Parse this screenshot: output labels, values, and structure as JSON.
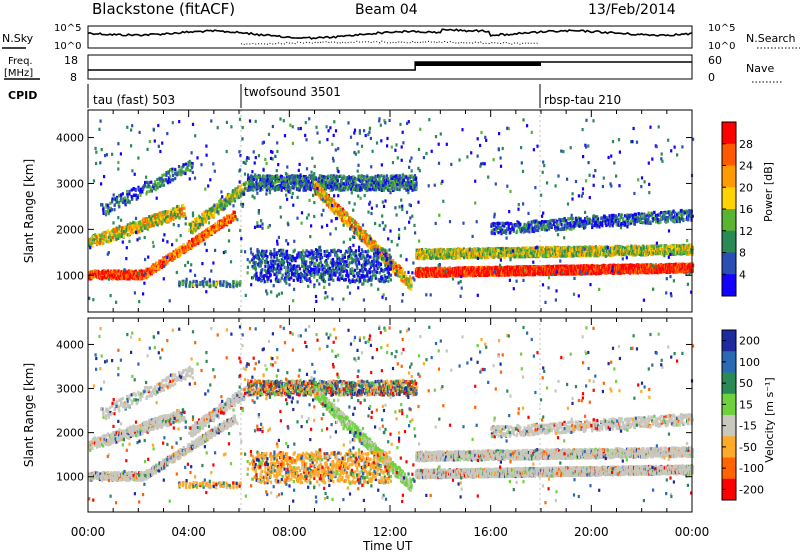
{
  "header": {
    "station": "Blackstone (fitACF)",
    "beam": "Beam 04",
    "date": "13/Feb/2014"
  },
  "nsky_panel": {
    "left_label": "N.Sky",
    "right_label": "N.Search",
    "left_ticks": [
      "10^5",
      "10^0"
    ],
    "right_ticks": [
      "10^5",
      "10^0"
    ]
  },
  "freq_panel": {
    "left_label_line1": "Freq.",
    "left_label_line2": "[MHz]",
    "right_label": "Nave",
    "left_ticks": [
      "18",
      "8"
    ],
    "right_ticks": [
      "60",
      "0"
    ]
  },
  "cpid_panel": {
    "label": "CPID",
    "modes": [
      {
        "name": "tau (fast) 503",
        "start_hour": 0
      },
      {
        "name": "twofsound 3501",
        "start_hour": 6
      },
      {
        "name": "rbsp-tau 210",
        "start_hour": 18
      }
    ]
  },
  "chart_data": [
    {
      "type": "heatmap",
      "name": "power",
      "xlabel": "",
      "ylabel": "Slant Range [km]",
      "xlim": [
        0,
        24
      ],
      "ylim": [
        200,
        4600
      ],
      "yticks": [
        "1000",
        "2000",
        "3000",
        "4000"
      ],
      "colorbar_label": "Power [dB]",
      "colorbar_ticks": [
        "28",
        "24",
        "20",
        "16",
        "12",
        "8",
        "4"
      ],
      "colorbar_colors": [
        "#ff0000",
        "#ff5a00",
        "#ff9a00",
        "#ffd200",
        "#5ab432",
        "#2a8a55",
        "#2a4fb4",
        "#1400ff"
      ]
    },
    {
      "type": "heatmap",
      "name": "velocity",
      "xlabel": "Time UT",
      "ylabel": "Slant Range [km]",
      "xlim": [
        0,
        24
      ],
      "ylim": [
        200,
        4600
      ],
      "xticks": [
        "00:00",
        "04:00",
        "08:00",
        "12:00",
        "16:00",
        "20:00",
        "00:00"
      ],
      "yticks": [
        "1000",
        "2000",
        "3000",
        "4000"
      ],
      "colorbar_label": "Velocity [m s⁻¹]",
      "colorbar_ticks": [
        "200",
        "100",
        "50",
        "15",
        "-15",
        "-50",
        "-100",
        "-200"
      ],
      "colorbar_colors": [
        "#1e2aa0",
        "#2a6ab4",
        "#2a8a55",
        "#6ed23c",
        "#c8c8be",
        "#ffaa28",
        "#ff6400",
        "#ff0000"
      ]
    }
  ]
}
